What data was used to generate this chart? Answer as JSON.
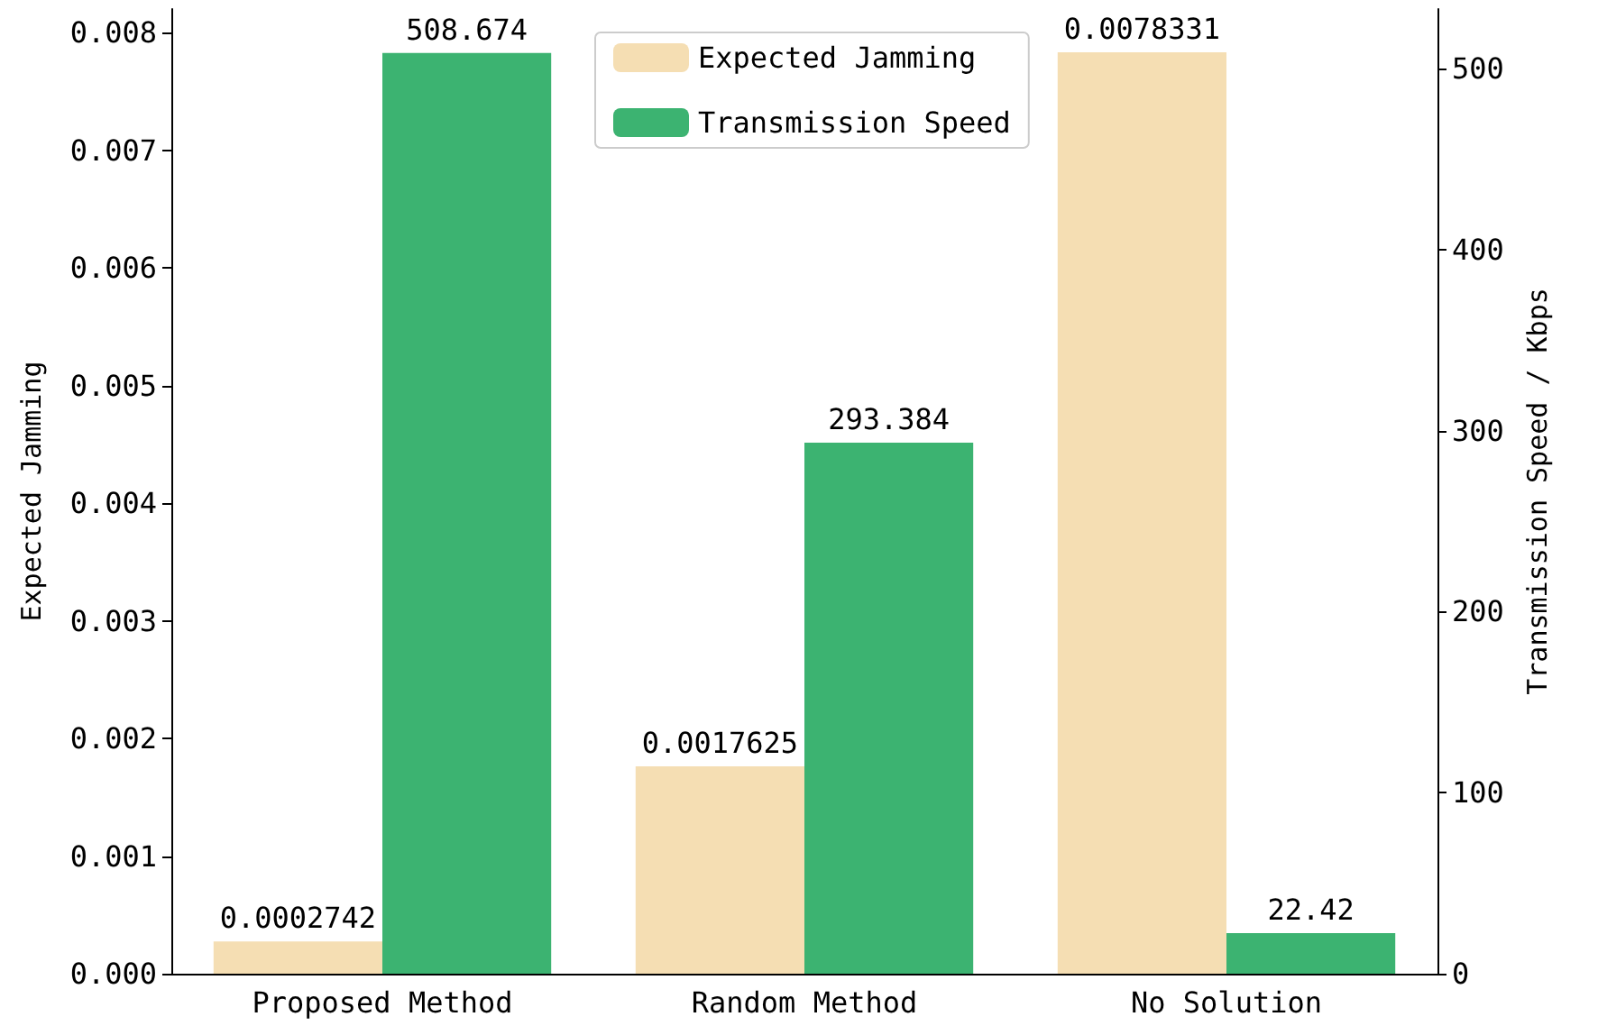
{
  "chart_data": {
    "type": "bar",
    "categories": [
      "Proposed Method",
      "Random Method",
      "No Solution"
    ],
    "series": [
      {
        "name": "Expected Jamming",
        "color": "#f5deb3",
        "values": [
          0.0002742,
          0.0017625,
          0.0078331
        ]
      },
      {
        "name": "Transmission Speed",
        "color": "#3cb371",
        "values": [
          508.674,
          293.384,
          22.42
        ],
        "axis": "y2"
      }
    ],
    "ylabel": "Expected Jamming",
    "y2label": "Transmission Speed / Kbps",
    "ylim": [
      0,
      0.0082
    ],
    "yticks": [
      {
        "value": 0,
        "label": "0.000"
      },
      0.001,
      0.002,
      0.003,
      0.004,
      0.005,
      0.006,
      0.007,
      0.008
    ],
    "y2lim": [
      0,
      533
    ],
    "y2ticks": [
      0,
      100,
      200,
      300,
      400,
      500
    ],
    "data_labels": true,
    "legend": "top",
    "grid": false
  }
}
